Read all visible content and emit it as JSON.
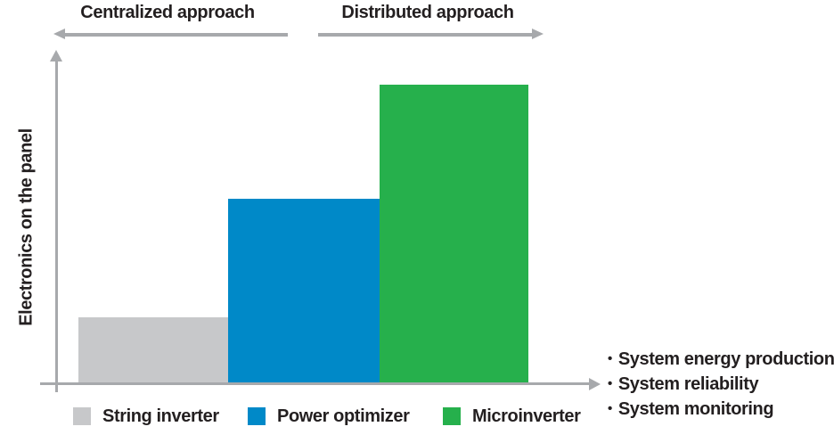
{
  "header": {
    "centralized_label": "Centralized approach",
    "distributed_label": "Distributed approach"
  },
  "chart_data": {
    "type": "bar",
    "title": "",
    "categories": [
      "String inverter",
      "Power optimizer",
      "Microinverter"
    ],
    "values": [
      20,
      56,
      91
    ],
    "xlabel": "",
    "ylabel": "Electronics on the panel",
    "ylim": [
      0,
      100
    ],
    "grid": false,
    "legend_position": "bottom",
    "bar_colors": [
      "#c7c8ca",
      "#0089c8",
      "#26b04c"
    ],
    "axis_color": "#a7a9ac",
    "top_annotations": [
      {
        "label": "Centralized approach",
        "arrow_direction": "left"
      },
      {
        "label": "Distributed approach",
        "arrow_direction": "right"
      }
    ]
  },
  "legend": {
    "items": [
      {
        "label": "String inverter",
        "color": "#c7c8ca"
      },
      {
        "label": "Power optimizer",
        "color": "#0089c8"
      },
      {
        "label": "Microinverter",
        "color": "#26b04c"
      }
    ]
  },
  "bullet_list": {
    "bullet_char": "•",
    "items": [
      "System energy production",
      "System reliability",
      "System monitoring"
    ]
  },
  "colors": {
    "text": "#231f20",
    "arrow_gray": "#a7a9ac",
    "bar_gray": "#c7c8ca",
    "bar_blue": "#0089c8",
    "bar_green": "#26b04c"
  }
}
